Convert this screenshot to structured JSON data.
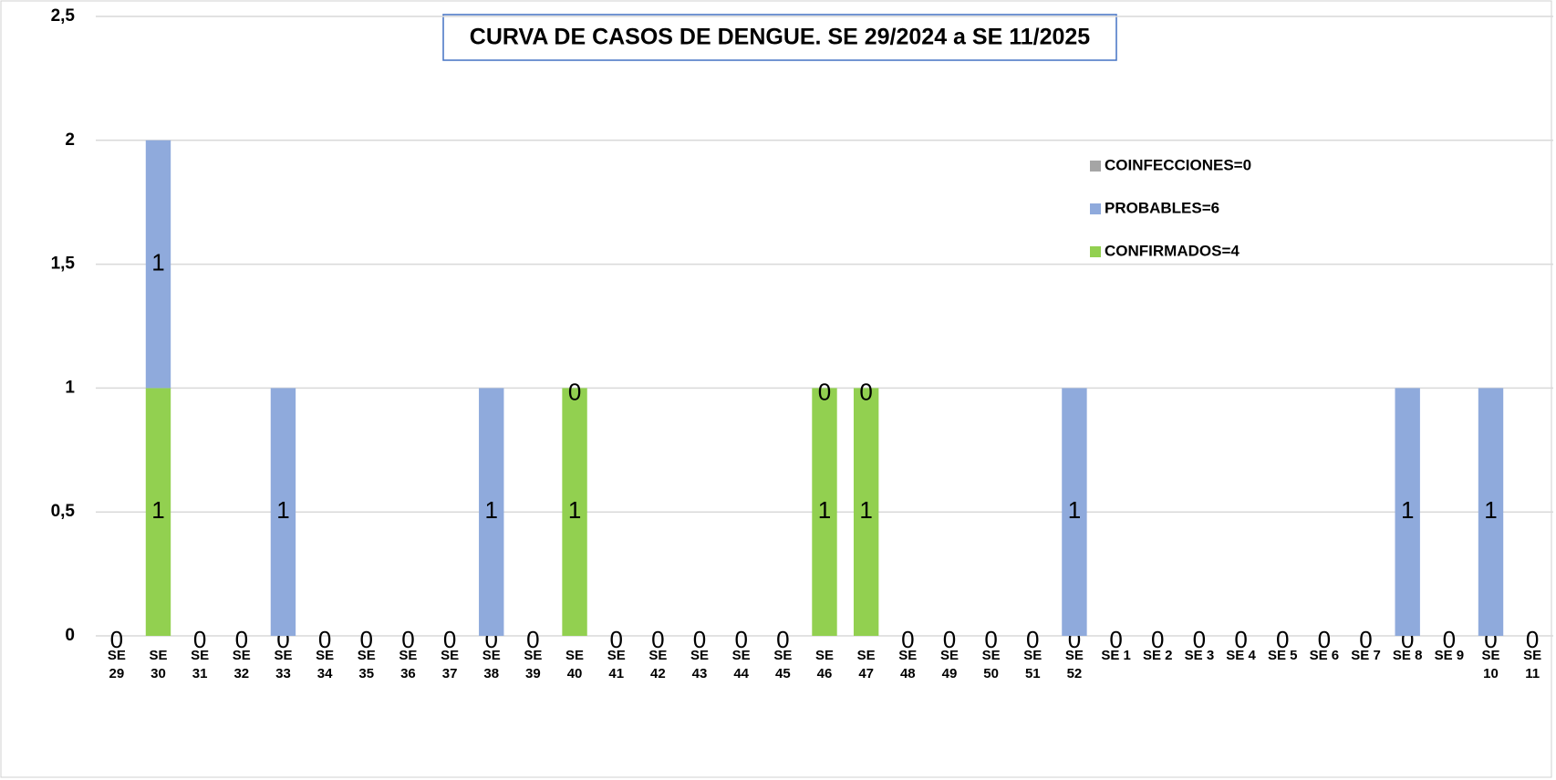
{
  "chart_data": {
    "type": "bar",
    "stacked": true,
    "title": "CURVA DE CASOS DE DENGUE. SE 29/2024 a SE 11/2025",
    "categories": [
      "SE 29",
      "SE 30",
      "SE 31",
      "SE 32",
      "SE 33",
      "SE 34",
      "SE 35",
      "SE 36",
      "SE 37",
      "SE 38",
      "SE 39",
      "SE 40",
      "SE 41",
      "SE 42",
      "SE 43",
      "SE 44",
      "SE 45",
      "SE 46",
      "SE 47",
      "SE 48",
      "SE 49",
      "SE 50",
      "SE 51",
      "SE 52",
      "SE 1",
      "SE 2",
      "SE 3",
      "SE 4",
      "SE 5",
      "SE 6",
      "SE 7",
      "SE 8",
      "SE 9",
      "SE 10",
      "SE 11"
    ],
    "series": [
      {
        "name": "CONFIRMADOS=4",
        "color": "#92d050",
        "values": [
          0,
          1,
          0,
          0,
          0,
          0,
          0,
          0,
          0,
          0,
          0,
          1,
          0,
          0,
          0,
          0,
          0,
          1,
          1,
          0,
          0,
          0,
          0,
          0,
          0,
          0,
          0,
          0,
          0,
          0,
          0,
          0,
          0,
          0,
          0
        ]
      },
      {
        "name": "PROBABLES=6",
        "color": "#8faadc",
        "values": [
          null,
          1,
          null,
          null,
          1,
          null,
          null,
          null,
          null,
          1,
          null,
          0,
          null,
          null,
          null,
          null,
          null,
          0,
          0,
          null,
          null,
          null,
          null,
          1,
          null,
          null,
          null,
          null,
          null,
          null,
          null,
          1,
          null,
          1,
          null
        ]
      },
      {
        "name": "COINFECCIONES=0",
        "color": "#a5a5a5",
        "values": [
          null,
          null,
          null,
          null,
          null,
          null,
          null,
          null,
          null,
          null,
          null,
          null,
          null,
          null,
          null,
          null,
          null,
          null,
          null,
          null,
          null,
          null,
          null,
          null,
          null,
          null,
          null,
          null,
          null,
          null,
          null,
          null,
          null,
          null,
          null
        ]
      }
    ],
    "ylim": [
      0,
      2.5
    ],
    "yticks": [
      0,
      {
        "value": 0.5,
        "label": "0,5"
      },
      1,
      {
        "value": 1.5,
        "label": "1,5"
      },
      2,
      {
        "value": 2.5,
        "label": "2,5"
      }
    ],
    "grid": true,
    "legend": "upper right"
  }
}
